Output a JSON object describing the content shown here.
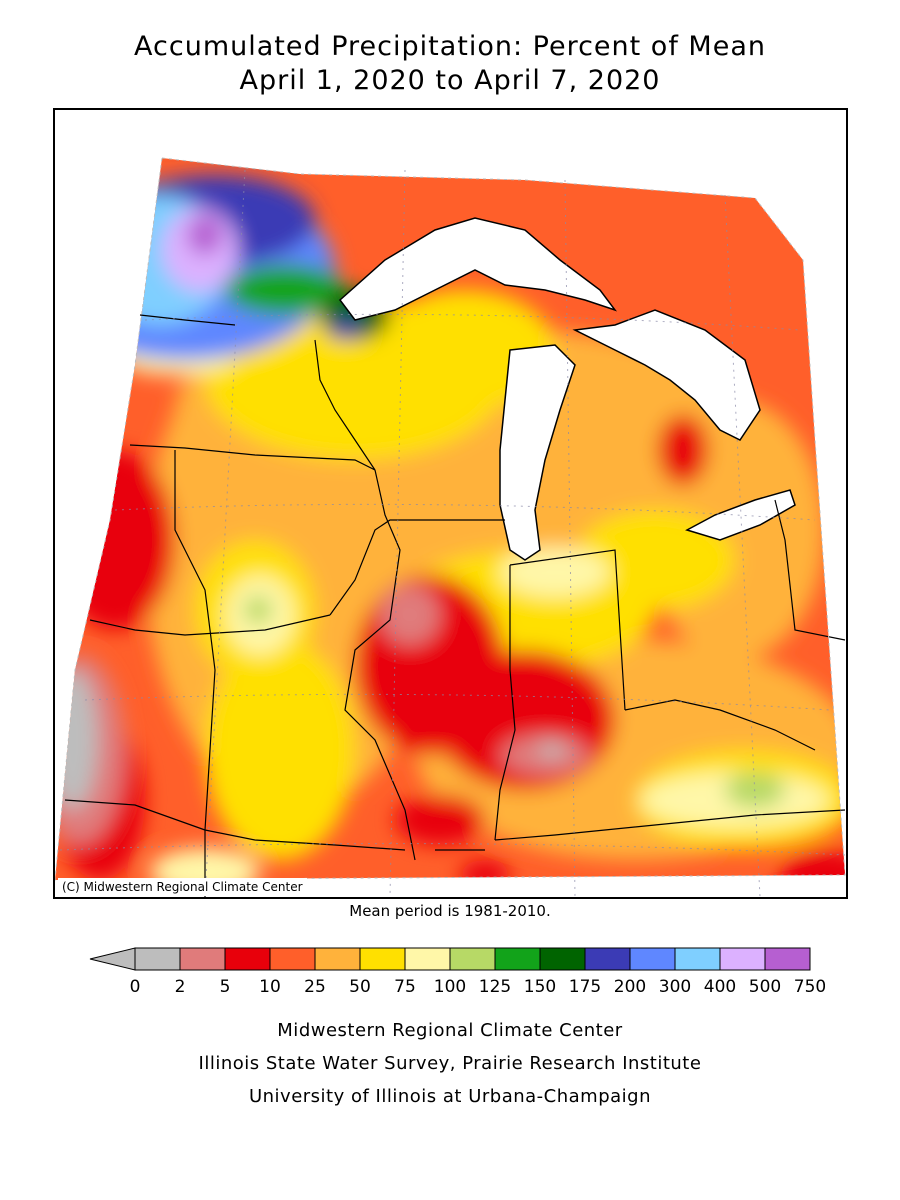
{
  "title_line1": "Accumulated Precipitation: Percent of Mean",
  "title_line2": "April 1, 2020 to April 7, 2020",
  "copyright": "(C) Midwestern Regional Climate Center",
  "mean_period": "Mean period is 1981-2010.",
  "legend": {
    "bins": [
      {
        "color": "#bdbdbd"
      },
      {
        "color": "#e07b7b"
      },
      {
        "color": "#e8000b"
      },
      {
        "color": "#ff5f2a"
      },
      {
        "color": "#ffb23b"
      },
      {
        "color": "#ffe000"
      },
      {
        "color": "#fff7a8"
      },
      {
        "color": "#b7d966"
      },
      {
        "color": "#12a31a"
      },
      {
        "color": "#006400"
      },
      {
        "color": "#3b3bb5"
      },
      {
        "color": "#5f87ff"
      },
      {
        "color": "#7fcfff"
      },
      {
        "color": "#dcb1ff"
      },
      {
        "color": "#b65fd1"
      }
    ],
    "tick_labels": [
      "0",
      "2",
      "5",
      "10",
      "25",
      "50",
      "75",
      "100",
      "125",
      "150",
      "175",
      "200",
      "300",
      "400",
      "500",
      "750"
    ],
    "underflow_color": "#bdbdbd"
  },
  "credits": [
    "Midwestern Regional Climate Center",
    "Illinois State Water Survey, Prairie Research Institute",
    "University of Illinois at Urbana-Champaign"
  ],
  "colors": {
    "lake": "#ffffff",
    "border": "#000000",
    "grid": "#8a8aa8"
  }
}
